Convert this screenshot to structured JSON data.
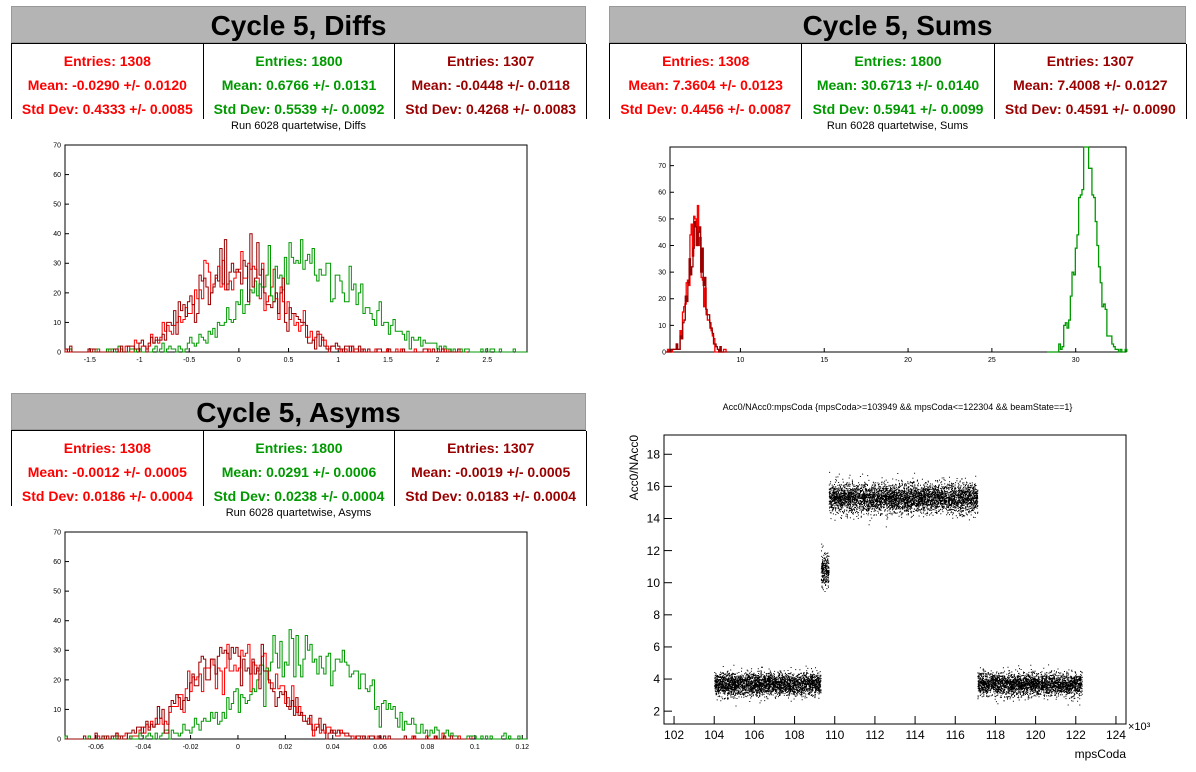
{
  "panels": {
    "diffs": {
      "title": "Cycle 5, Diffs",
      "subtitle": "Run 6028 quartetwise, Diffs",
      "stats": [
        {
          "entries": "Entries: 1308",
          "mean": "Mean: -0.0290 +/- 0.0120",
          "std": "Std Dev: 0.4333 +/- 0.0085",
          "color": "#ff0000"
        },
        {
          "entries": "Entries: 1800",
          "mean": "Mean: 0.6766 +/- 0.0131",
          "std": "Std Dev: 0.5539 +/- 0.0092",
          "color": "#009900"
        },
        {
          "entries": "Entries: 1307",
          "mean": "Mean: -0.0448 +/- 0.0118",
          "std": "Std Dev: 0.4268 +/- 0.0083",
          "color": "#990000"
        }
      ]
    },
    "sums": {
      "title": "Cycle 5, Sums",
      "subtitle": "Run 6028 quartetwise, Sums",
      "stats": [
        {
          "entries": "Entries: 1308",
          "mean": "Mean: 7.3604 +/- 0.0123",
          "std": "Std Dev: 0.4456 +/- 0.0087",
          "color": "#ff0000"
        },
        {
          "entries": "Entries: 1800",
          "mean": "Mean: 30.6713 +/- 0.0140",
          "std": "Std Dev: 0.5941 +/- 0.0099",
          "color": "#009900"
        },
        {
          "entries": "Entries: 1307",
          "mean": "Mean: 7.4008 +/- 0.0127",
          "std": "Std Dev: 0.4591 +/- 0.0090",
          "color": "#990000"
        }
      ]
    },
    "asyms": {
      "title": "Cycle 5, Asyms",
      "subtitle": "Run 6028 quartetwise, Asyms",
      "stats": [
        {
          "entries": "Entries: 1308",
          "mean": "Mean: -0.0012 +/- 0.0005",
          "std": "Std Dev: 0.0186 +/- 0.0004",
          "color": "#ff0000"
        },
        {
          "entries": "Entries: 1800",
          "mean": "Mean: 0.0291 +/- 0.0006",
          "std": "Std Dev: 0.0238 +/- 0.0004",
          "color": "#009900"
        },
        {
          "entries": "Entries: 1307",
          "mean": "Mean: -0.0019 +/- 0.0005",
          "std": "Std Dev: 0.0183 +/- 0.0004",
          "color": "#990000"
        }
      ]
    },
    "scatter": {
      "title": "Acc0/NAcc0:mpsCoda {mpsCoda>=103949 && mpsCoda<=122304 && beamState==1}"
    }
  },
  "chart_data": [
    {
      "id": "diffs",
      "type": "histogram",
      "xlim": [
        -1.75,
        2.9
      ],
      "ylim": [
        0,
        70
      ],
      "xticks": [
        -1.5,
        -1,
        -0.5,
        0,
        0.5,
        1,
        1.5,
        2,
        2.5
      ],
      "yticks": [
        0,
        10,
        20,
        30,
        40,
        50,
        60,
        70
      ],
      "series": [
        {
          "color": "#ff0000",
          "mean": -0.029,
          "std": 0.4333,
          "entries": 1308,
          "bins": 120
        },
        {
          "color": "#009900",
          "mean": 0.6766,
          "std": 0.5539,
          "entries": 1800,
          "bins": 140
        },
        {
          "color": "#990000",
          "mean": -0.0448,
          "std": 0.4268,
          "entries": 1307,
          "bins": 120
        }
      ]
    },
    {
      "id": "sums",
      "type": "histogram",
      "xlim": [
        5.8,
        33.0
      ],
      "ylim": [
        0,
        77
      ],
      "xticks": [
        10,
        15,
        20,
        25,
        30
      ],
      "yticks": [
        0,
        10,
        20,
        30,
        40,
        50,
        60,
        70
      ],
      "series": [
        {
          "color": "#ff0000",
          "mean": 7.3604,
          "std": 0.4456,
          "entries": 1308,
          "peak": 47
        },
        {
          "color": "#009900",
          "mean": 30.6713,
          "std": 0.5941,
          "entries": 1800,
          "peak": 73
        },
        {
          "color": "#990000",
          "mean": 7.4008,
          "std": 0.4591,
          "entries": 1307,
          "peak": 45
        }
      ]
    },
    {
      "id": "asyms",
      "type": "histogram",
      "xlim": [
        -0.073,
        0.122
      ],
      "ylim": [
        0,
        70
      ],
      "xticks": [
        -0.06,
        -0.04,
        -0.02,
        0,
        0.02,
        0.04,
        0.06,
        0.08,
        0.1,
        0.12
      ],
      "yticks": [
        0,
        10,
        20,
        30,
        40,
        50,
        60,
        70
      ],
      "series": [
        {
          "color": "#ff0000",
          "mean": -0.0012,
          "std": 0.0186,
          "entries": 1308,
          "bins": 120
        },
        {
          "color": "#009900",
          "mean": 0.0291,
          "std": 0.0238,
          "entries": 1800,
          "bins": 140
        },
        {
          "color": "#990000",
          "mean": -0.0019,
          "std": 0.0183,
          "entries": 1307,
          "bins": 120
        }
      ]
    },
    {
      "id": "scatter",
      "type": "scatter",
      "xlim": [
        101.5,
        124.5
      ],
      "ylim": [
        1.2,
        19.2
      ],
      "xticks": [
        102,
        104,
        106,
        108,
        110,
        112,
        114,
        116,
        118,
        120,
        122,
        124
      ],
      "yticks": [
        2,
        4,
        6,
        8,
        10,
        12,
        14,
        16,
        18
      ],
      "xlabel": "mpsCoda",
      "ylabel": "Acc0/NAcc0",
      "xexponent": "×10³",
      "clusters": [
        {
          "x": [
            104.0,
            109.3
          ],
          "y_mean": 3.7,
          "y_std": 0.35,
          "n": 3200
        },
        {
          "x": [
            109.3,
            109.7
          ],
          "y_mean": 10.8,
          "y_std": 0.55,
          "n": 260
        },
        {
          "x": [
            109.7,
            117.1
          ],
          "y_mean": 15.3,
          "y_std": 0.45,
          "n": 4600
        },
        {
          "x": [
            117.1,
            122.3
          ],
          "y_mean": 3.7,
          "y_std": 0.35,
          "n": 3000
        }
      ]
    }
  ]
}
